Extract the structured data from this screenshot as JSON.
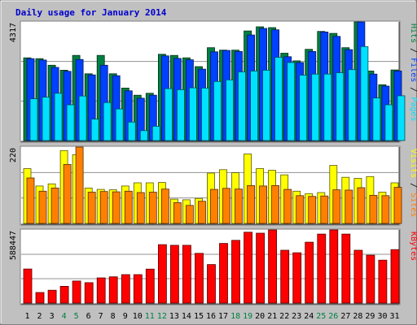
{
  "chart_data": {
    "type": "bar",
    "title": "Daily usage for January 2014",
    "categories": [
      "1",
      "2",
      "3",
      "4",
      "5",
      "6",
      "7",
      "8",
      "9",
      "10",
      "11",
      "12",
      "13",
      "14",
      "15",
      "16",
      "17",
      "18",
      "19",
      "20",
      "21",
      "22",
      "23",
      "24",
      "25",
      "26",
      "27",
      "28",
      "29",
      "30",
      "31"
    ],
    "weekend_days": [
      "4",
      "5",
      "11",
      "12",
      "18",
      "19",
      "25",
      "26"
    ],
    "colors": {
      "hits": "#008040",
      "files": "#0040ff",
      "pages": "#00e0ff",
      "visits": "#ffff00",
      "sites": "#ff8000",
      "kbytes": "#ff0000",
      "weekend_label": "#008040",
      "weekday_label": "#000000",
      "background": "#c0c0c0",
      "panel": "#ffffff"
    },
    "panels": [
      {
        "id": "hits-files-pages",
        "max_label": "4317",
        "ymax": 4317,
        "right_labels": [
          {
            "text": "Hits",
            "color": "#008040"
          },
          {
            "text": " / ",
            "color": "#000000"
          },
          {
            "text": "Files",
            "color": "#0040ff"
          },
          {
            "text": " / ",
            "color": "#000000"
          },
          {
            "text": "Pages",
            "color": "#00e0ff"
          }
        ],
        "series": [
          {
            "name": "Hits",
            "color": "#008040",
            "values": [
              3010,
              2980,
              2740,
              2560,
              3100,
              2430,
              3100,
              2430,
              1910,
              1650,
              1720,
              3140,
              3100,
              3010,
              2690,
              3380,
              3290,
              3290,
              3990,
              4140,
              4110,
              3180,
              2900,
              3320,
              3970,
              3900,
              3380,
              4400,
              2530,
              2030,
              2570
            ]
          },
          {
            "name": "Files",
            "color": "#0040ff",
            "values": [
              2980,
              2930,
              2660,
              2520,
              2950,
              2390,
              2740,
              2360,
              1810,
              1540,
              1650,
              3080,
              2990,
              2940,
              2600,
              3230,
              3280,
              3240,
              3840,
              4080,
              4030,
              3050,
              2840,
              3240,
              3950,
              3790,
              3310,
              4380,
              2420,
              1980,
              2530
            ]
          },
          {
            "name": "Pages",
            "color": "#00e0ff",
            "values": [
              1520,
              1580,
              1720,
              1300,
              1620,
              780,
              1380,
              1150,
              670,
              360,
              520,
              1890,
              1850,
              1920,
              1910,
              2150,
              2210,
              2500,
              2530,
              2560,
              3030,
              2840,
              2380,
              2420,
              2420,
              2470,
              2580,
              3420,
              1550,
              1300,
              1630
            ]
          }
        ]
      },
      {
        "id": "visits-sites",
        "max_label": "220",
        "ymax": 220,
        "right_labels": [
          {
            "text": "Visits",
            "color": "#ffff00"
          },
          {
            "text": " / ",
            "color": "#000000"
          },
          {
            "text": "Sites",
            "color": "#ff8000"
          }
        ],
        "series": [
          {
            "name": "Visits",
            "color": "#ffff00",
            "values": [
              158,
              108,
              114,
              210,
              198,
              102,
              98,
              97,
              108,
              117,
              117,
              118,
              70,
              68,
              72,
              145,
              155,
              146,
              200,
              158,
              153,
              140,
              93,
              86,
              89,
              167,
              133,
              130,
              135,
              90,
              117
            ]
          },
          {
            "name": "Sites",
            "color": "#ff8000",
            "values": [
              131,
              93,
              102,
              170,
              230,
              90,
              92,
              91,
              93,
              89,
              90,
              99,
              60,
              52,
              64,
              98,
              101,
              99,
              109,
              108,
              109,
              98,
              80,
              78,
              79,
              97,
              96,
              103,
              81,
              80,
              104
            ]
          }
        ]
      },
      {
        "id": "kbytes",
        "max_label": "588447",
        "ymax": 588447,
        "right_labels": [
          {
            "text": "KBytes",
            "color": "#ff0000"
          }
        ],
        "series": [
          {
            "name": "KBytes",
            "color": "#ff0000",
            "values": [
              274000,
              85000,
              103000,
              135000,
              177000,
              164000,
              203000,
              211000,
              229000,
              229000,
              273000,
              470000,
              465000,
              465000,
              400000,
              310000,
              480000,
              505000,
              570000,
              562000,
              590000,
              425000,
              405000,
              490000,
              555000,
              590000,
              555000,
              425000,
              385000,
              345000,
              430000
            ]
          }
        ]
      }
    ]
  }
}
